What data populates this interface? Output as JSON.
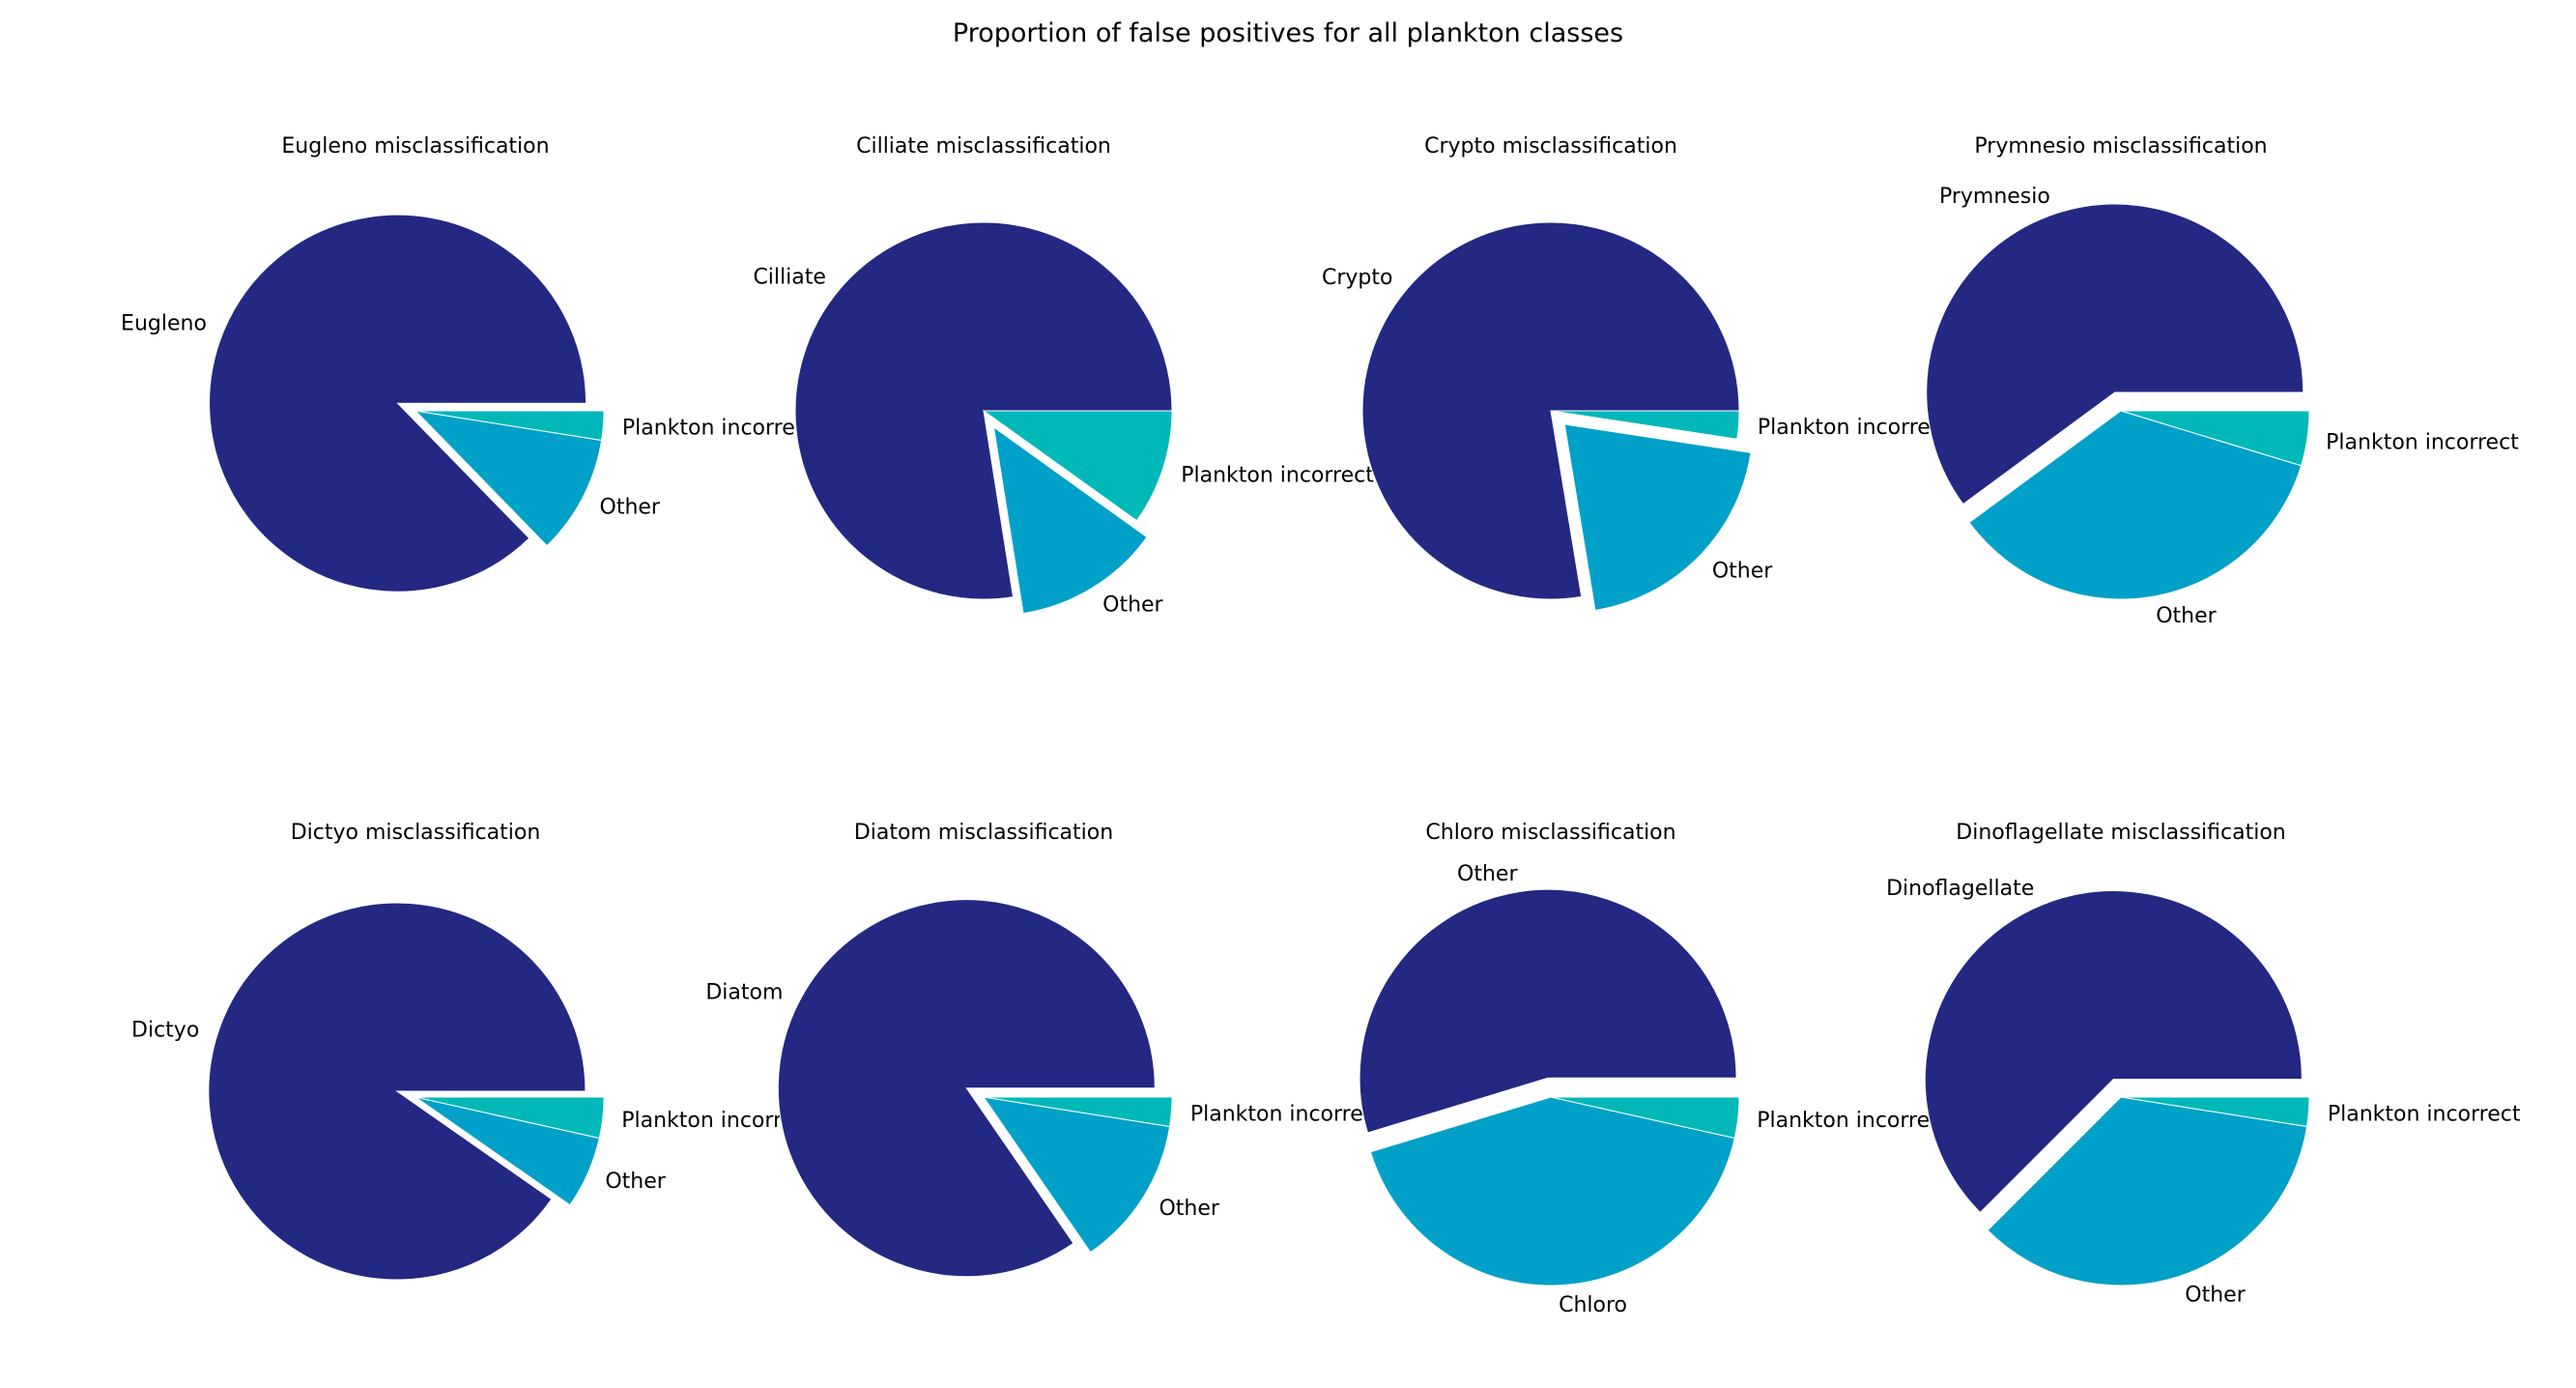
{
  "figure": {
    "suptitle": "Proportion of false positives for all plankton classes"
  },
  "colors": {
    "correct": "#232882",
    "other": "#00a0c8",
    "plankton_incorrect": "#00b8b8",
    "separator": "#ffffff"
  },
  "chart_data": [
    {
      "type": "pie",
      "title": "Eugleno misclassification",
      "labels": [
        "Eugleno",
        "Other",
        "Plankton incorrect"
      ],
      "values": [
        0.873,
        0.102,
        0.025
      ],
      "exploded": "Eugleno"
    },
    {
      "type": "pie",
      "title": "Cilliate misclassification",
      "labels": [
        "Cilliate",
        "Other",
        "Plankton incorrect"
      ],
      "values": [
        0.775,
        0.126,
        0.099
      ],
      "exploded": "Other"
    },
    {
      "type": "pie",
      "title": "Crypto misclassification",
      "labels": [
        "Crypto",
        "Other",
        "Plankton incorrect"
      ],
      "values": [
        0.776,
        0.2,
        0.024
      ],
      "exploded": "Other"
    },
    {
      "type": "pie",
      "title": "Prymnesio misclassification",
      "labels": [
        "Prymnesio",
        "Other",
        "Plankton incorrect"
      ],
      "values": [
        0.601,
        0.352,
        0.047
      ],
      "exploded": "Prymnesio"
    },
    {
      "type": "pie",
      "title": "Dictyo misclassification",
      "labels": [
        "Dictyo",
        "Other",
        "Plankton incorrect"
      ],
      "values": [
        0.903,
        0.062,
        0.035
      ],
      "exploded": "Dictyo"
    },
    {
      "type": "pie",
      "title": "Diatom misclassification",
      "labels": [
        "Diatom",
        "Other",
        "Plankton incorrect"
      ],
      "values": [
        0.846,
        0.129,
        0.025
      ],
      "exploded": "Diatom"
    },
    {
      "type": "pie",
      "title": "Chloro misclassification",
      "labels": [
        "Other",
        "Chloro",
        "Plankton incorrect"
      ],
      "values": [
        0.547,
        0.418,
        0.035
      ],
      "exploded": "Other"
    },
    {
      "type": "pie",
      "title": "Dinoflagellate misclassification",
      "labels": [
        "Dinoflagellate",
        "Other",
        "Plankton incorrect"
      ],
      "values": [
        0.625,
        0.35,
        0.025
      ],
      "exploded": "Dinoflagellate"
    }
  ]
}
